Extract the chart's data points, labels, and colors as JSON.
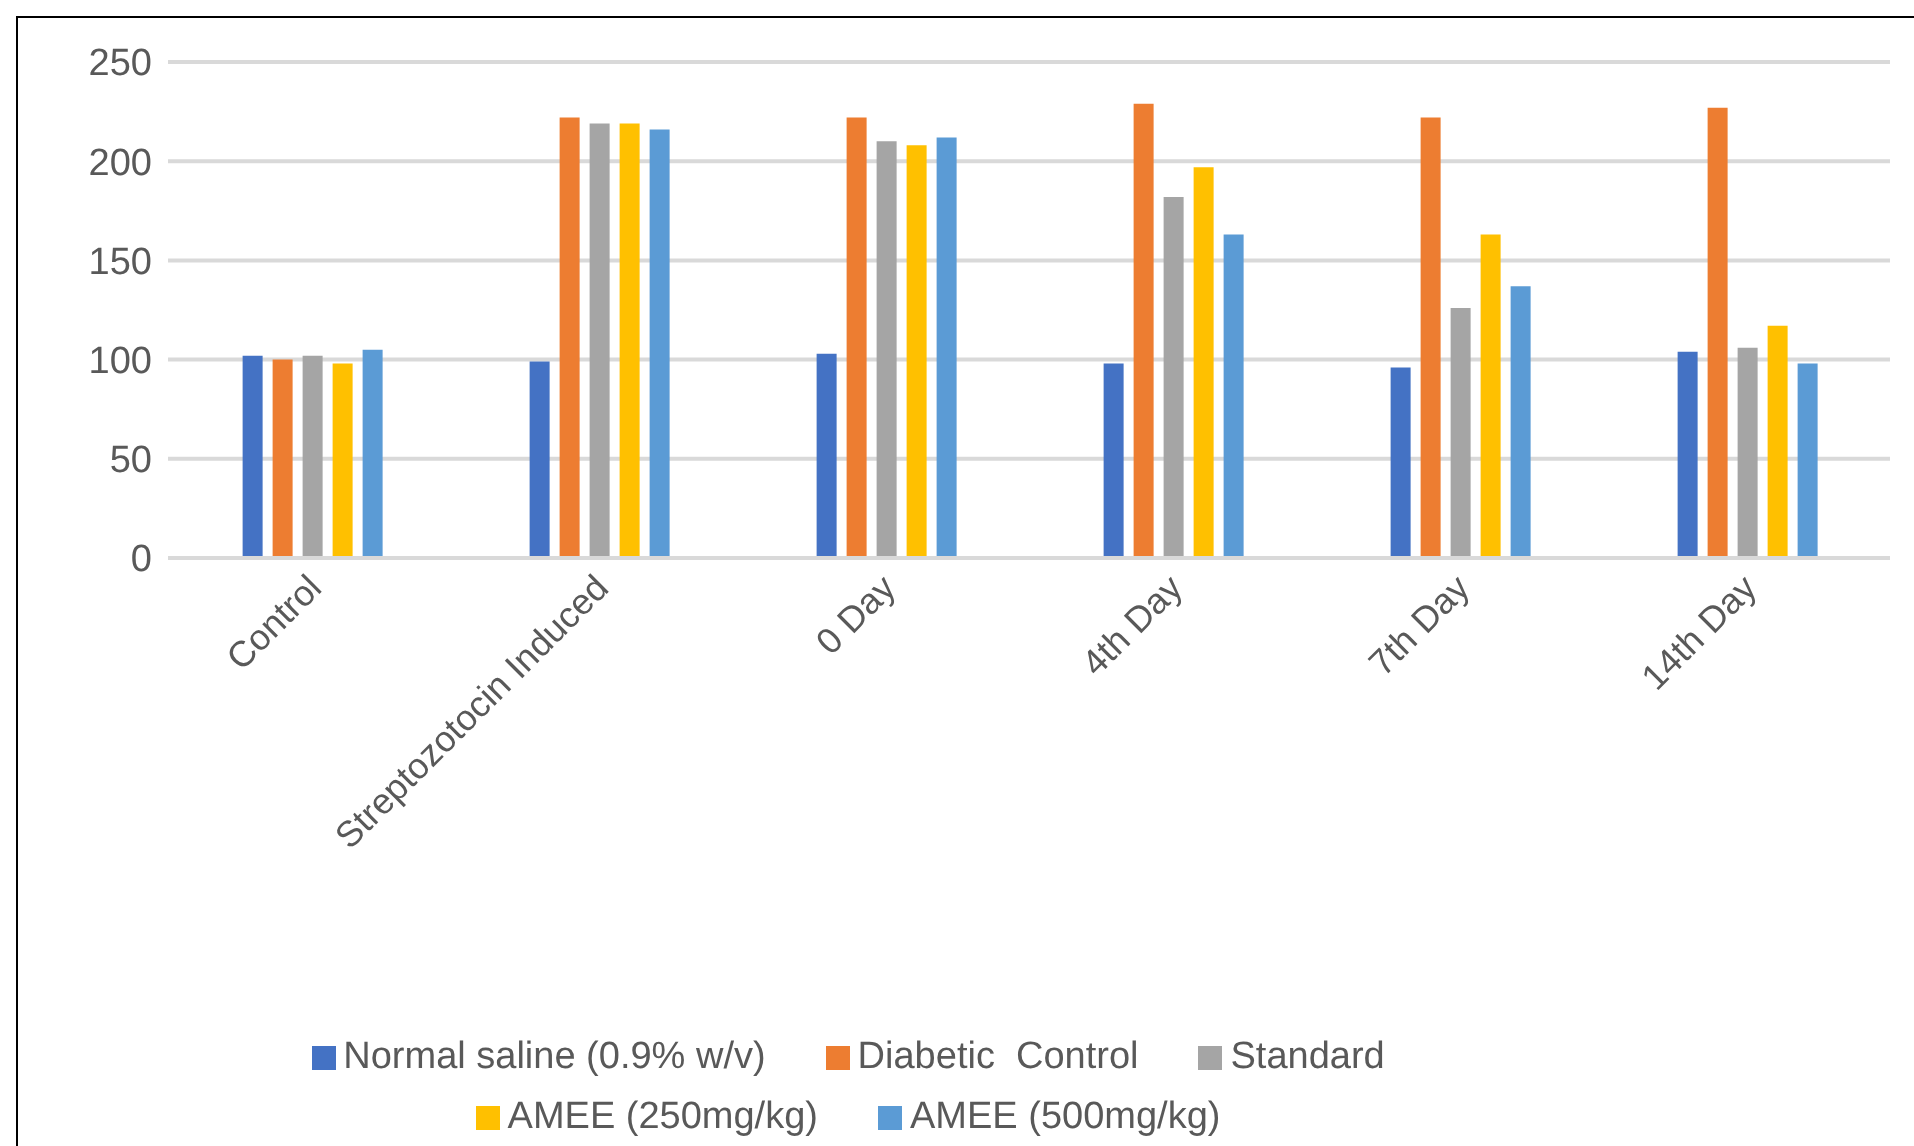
{
  "chart_data": {
    "type": "bar",
    "categories": [
      "Control",
      "Streptozotocin Induced",
      "0 Day",
      "4th Day",
      "7th Day",
      "14th Day"
    ],
    "series": [
      {
        "name": "Normal saline (0.9% w/v)",
        "color": "#4472c4",
        "values": [
          102,
          99,
          103,
          98,
          96,
          104
        ]
      },
      {
        "name": "Diabetic  Control",
        "color": "#ed7d31",
        "values": [
          100,
          222,
          222,
          229,
          222,
          227
        ]
      },
      {
        "name": "Standard",
        "color": "#a5a5a5",
        "values": [
          102,
          219,
          210,
          182,
          126,
          106
        ]
      },
      {
        "name": "AMEE (250mg/kg)",
        "color": "#ffc000",
        "values": [
          98,
          219,
          208,
          197,
          163,
          117
        ]
      },
      {
        "name": "AMEE (500mg/kg)",
        "color": "#5b9bd5",
        "values": [
          105,
          216,
          212,
          163,
          137,
          98
        ]
      }
    ],
    "ylim": [
      0,
      250
    ],
    "yticks": [
      0,
      50,
      100,
      150,
      200,
      250
    ],
    "grid": "y",
    "legend": "bottom"
  }
}
